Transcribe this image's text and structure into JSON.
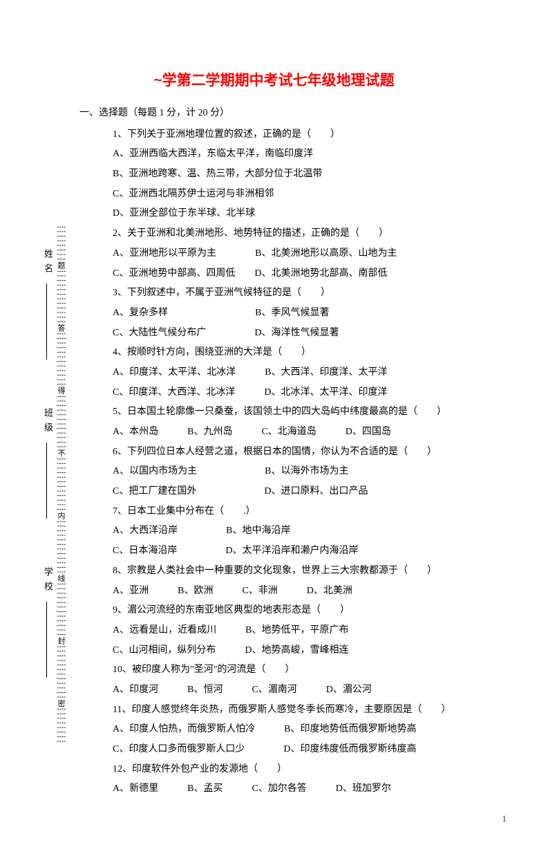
{
  "title": "~学第二学期期中考试七年级地理试题",
  "section_header": "一、选择题（每题 1 分，计 20 分）",
  "page_number": "1",
  "sidebar": {
    "school_label": "学校",
    "class_label": "班级",
    "name_label": "姓名",
    "seal_chars": [
      "密",
      "封",
      "线",
      "内",
      "不",
      "得",
      "答",
      "题"
    ]
  },
  "questions": [
    {
      "stem": "1、下列关于亚洲地理位置的叙述，正确的是（　　）",
      "options": [
        "A、亚洲西临大西洋，东临太平洋，南临印度洋",
        "B、亚洲地跨寒、温、热三带，大部分位于北温带",
        "C、亚洲西北隔苏伊士运河与非洲相邻",
        "D、亚洲全部位于东半球、北半球"
      ]
    },
    {
      "stem": "2、关于亚洲和北美洲地形、地势特征的描述，正确的是（　　）",
      "options": [
        "A、亚洲地形以平原为主　　　　B、北美洲地形以高原、山地为主",
        "C、亚洲地势中部高、四周低　　D、北美洲地势北部高、南部低"
      ]
    },
    {
      "stem": "3、下列叙述中，不属于亚洲气候特征的是（　　）",
      "options": [
        "A、复杂多样　　　　　　　　　B、季风气候显著",
        "C、大陆性气候分布广　　　　　D、海洋性气候显著"
      ]
    },
    {
      "stem": "4、按顺时针方向，围绕亚洲的大洋是（　　）",
      "options": [
        "A、印度洋、太平洋、北冰洋　　　B、大西洋、印度洋、太平洋",
        "C、印度洋、大西洋、北冰洋　　　D、北冰洋、太平洋、印度洋"
      ]
    },
    {
      "stem": "5、日本国土轮廓像一只桑蚕，该国领土中的四大岛屿中纬度最高的是（　　）",
      "options": [
        "A、本州岛　　　B、九州岛　　　C、北海道岛　　　D、四国岛"
      ]
    },
    {
      "stem": "6、下列四位日本人经营之道，根据日本的国情，你认为不合适的是（　　）",
      "options": [
        "A、以国内市场为主　　　　　　　B、以海外市场为主",
        "C、把工厂建在国外　　　　　　　D、进口原料、出口产品"
      ]
    },
    {
      "stem": "7、日本工业集中分布在（　　.）",
      "options": [
        "A、大西洋沿岸　　　　　B、地中海沿岸",
        "C、日本海沿岸　　　　　D、太平洋沿岸和濑户内海沿岸"
      ]
    },
    {
      "stem": "8、宗教是人类社会中一种重要的文化现象，世界上三大宗教都源于（　　）",
      "options": [
        "A、亚洲　　　B、欧洲　　　C、非洲　　　D、北美洲"
      ]
    },
    {
      "stem": "9、湄公河流经的东南亚地区典型的地表形态是（　　）",
      "options": [
        "A、远看是山，近看成川　　　B、地势低平，平原广布",
        "C、山河相间，纵列分布　　　D、地势高峻，雪峰相连"
      ]
    },
    {
      "stem": "10、被印度人称为\"圣河\"的河流是（　　）",
      "options": [
        "A、印度河　　　B、恒河　　　C、湄南河　　　D、湄公河"
      ]
    },
    {
      "stem": "11、印度人感觉终年炎热，而俄罗斯人感觉冬季长而寒冷，主要原因是（　　）",
      "options": [
        "A、印度人怕热，而俄罗斯人怕冷　　　B、印度地势低而俄罗斯地势高",
        "C、印度人口多而俄罗斯人口少　　　　D、印度纬度低而俄罗斯纬度高"
      ]
    },
    {
      "stem": "12、印度软件外包产业的发源地（　　）",
      "options": [
        "A、新德里　　　B、孟买　　　C、加尔各答　　　D、班加罗尔"
      ]
    }
  ]
}
